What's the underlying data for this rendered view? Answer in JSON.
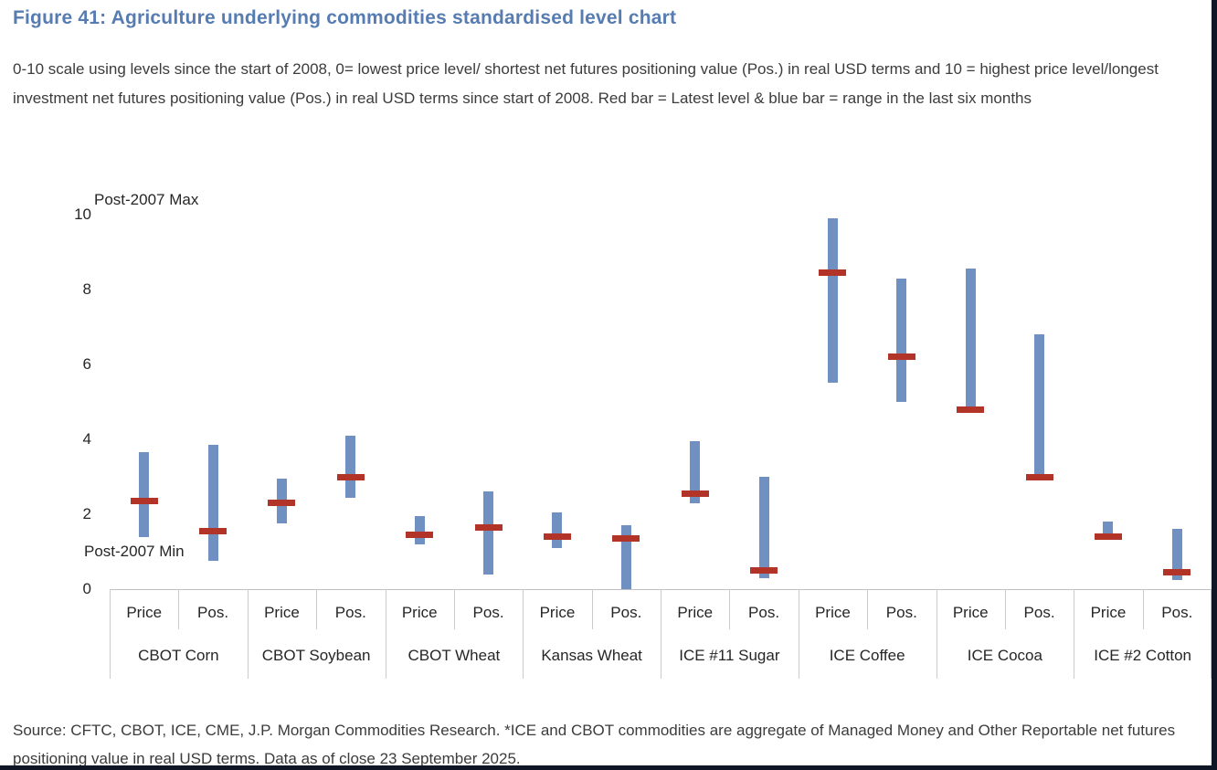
{
  "page": {
    "title": "Figure 41: Agriculture underlying commodities standardised level chart",
    "description": "0-10 scale using levels since the start of 2008, 0= lowest price level/ shortest net futures positioning value (Pos.) in real USD terms and 10 = highest price level/longest investment net futures positioning value (Pos.) in real USD terms since start of 2008. Red bar = Latest level & blue bar = range in the last six months",
    "source_note": "Source: CFTC, CBOT, ICE, CME, J.P. Morgan Commodities Research. *ICE and CBOT commodities are aggregate of Managed Money and Other Reportable net futures positioning value in real USD terms. Data as of close 23 September 2025."
  },
  "colors": {
    "title_blue": "#567cb2",
    "range_bar_blue": "#6f90c1",
    "latest_bar_red": "#b23428",
    "body_text": "#3c3c3c",
    "axis_line": "#bfbfbf",
    "frame_border": "#0f1726"
  },
  "chart_data": {
    "type": "range-bar",
    "title": "Agriculture underlying commodities standardised level chart",
    "ylim": [
      0,
      10
    ],
    "yticks": [
      0,
      2,
      4,
      6,
      8,
      10
    ],
    "grid": false,
    "annotation_max": "Post-2007 Max",
    "annotation_min": "Post-2007 Min",
    "legend_note": "Red bar = Latest level, blue bar = range in the last six months",
    "sub_labels": [
      "Price",
      "Pos."
    ],
    "groups": [
      {
        "name": "CBOT Corn",
        "bars": [
          {
            "label": "Price",
            "low": 1.4,
            "high": 3.65,
            "latest": 2.35
          },
          {
            "label": "Pos.",
            "low": 0.75,
            "high": 3.85,
            "latest": 1.55
          }
        ]
      },
      {
        "name": "CBOT Soybean",
        "bars": [
          {
            "label": "Price",
            "low": 1.75,
            "high": 2.95,
            "latest": 2.3
          },
          {
            "label": "Pos.",
            "low": 2.45,
            "high": 4.1,
            "latest": 3.0
          }
        ]
      },
      {
        "name": "CBOT Wheat",
        "bars": [
          {
            "label": "Price",
            "low": 1.2,
            "high": 1.95,
            "latest": 1.45
          },
          {
            "label": "Pos.",
            "low": 0.4,
            "high": 2.6,
            "latest": 1.65
          }
        ]
      },
      {
        "name": "Kansas Wheat",
        "bars": [
          {
            "label": "Price",
            "low": 1.1,
            "high": 2.05,
            "latest": 1.4
          },
          {
            "label": "Pos.",
            "low": 0.0,
            "high": 1.7,
            "latest": 1.35
          }
        ]
      },
      {
        "name": "ICE #11 Sugar",
        "bars": [
          {
            "label": "Price",
            "low": 2.3,
            "high": 3.95,
            "latest": 2.55
          },
          {
            "label": "Pos.",
            "low": 0.3,
            "high": 3.0,
            "latest": 0.5
          }
        ]
      },
      {
        "name": "ICE Coffee",
        "bars": [
          {
            "label": "Price",
            "low": 5.5,
            "high": 9.9,
            "latest": 8.45
          },
          {
            "label": "Pos.",
            "low": 5.0,
            "high": 8.3,
            "latest": 6.2
          }
        ]
      },
      {
        "name": "ICE Cocoa",
        "bars": [
          {
            "label": "Price",
            "low": 4.85,
            "high": 8.55,
            "latest": 4.8
          },
          {
            "label": "Pos.",
            "low": 3.05,
            "high": 6.8,
            "latest": 3.0
          }
        ]
      },
      {
        "name": "ICE #2 Cotton",
        "bars": [
          {
            "label": "Price",
            "low": 1.45,
            "high": 1.8,
            "latest": 1.4
          },
          {
            "label": "Pos.",
            "low": 0.25,
            "high": 1.6,
            "latest": 0.45
          }
        ]
      }
    ]
  }
}
